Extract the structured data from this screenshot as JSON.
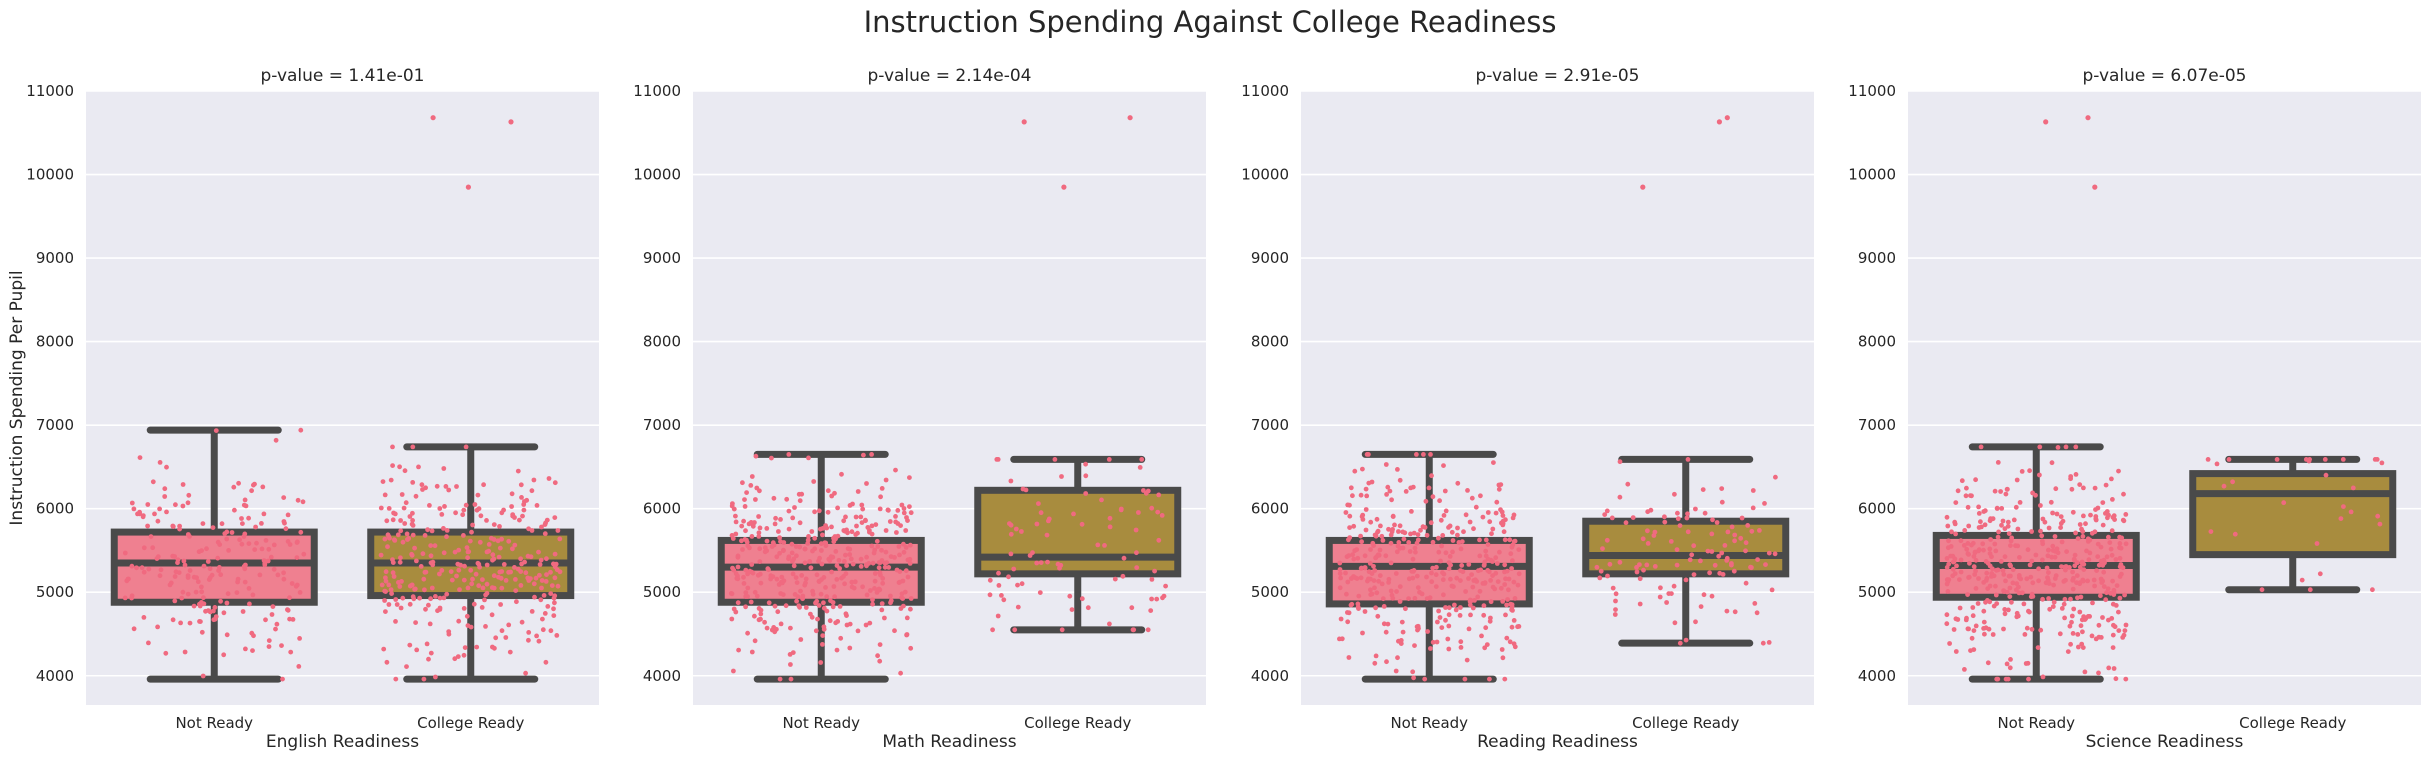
{
  "figure_title": "Instruction Spending Against College Readiness",
  "colors": {
    "not_ready": "#ef8090",
    "college_ready": "#a88c3e",
    "box_edge": "#4a4a4a",
    "points": "#f06a80",
    "panel_bg": "#eaeaf2",
    "grid": "#ffffff"
  },
  "chart_data": [
    {
      "type": "box",
      "title": "p-value = 1.41e-01",
      "xlabel": "English Readiness",
      "ylabel": "Instruction Spending Per Pupil",
      "ylim": [
        3650,
        11000
      ],
      "yticks": [
        4000,
        5000,
        6000,
        7000,
        8000,
        9000,
        10000,
        11000
      ],
      "grid": true,
      "categories": [
        "Not Ready",
        "College Ready"
      ],
      "boxes": [
        {
          "q1": 4880,
          "median": 5350,
          "q3": 5720,
          "whisker_low": 3960,
          "whisker_high": 6940,
          "n_points": 220,
          "outliers": []
        },
        {
          "q1": 4960,
          "median": 5350,
          "q3": 5720,
          "whisker_low": 3960,
          "whisker_high": 6740,
          "n_points": 330,
          "outliers": [
            9850,
            10630,
            10680
          ]
        }
      ]
    },
    {
      "type": "box",
      "title": "p-value = 2.14e-04",
      "xlabel": "Math Readiness",
      "ylabel": "",
      "ylim": [
        3650,
        11000
      ],
      "yticks": [
        4000,
        5000,
        6000,
        7000,
        8000,
        9000,
        10000,
        11000
      ],
      "grid": true,
      "categories": [
        "Not Ready",
        "College Ready"
      ],
      "boxes": [
        {
          "q1": 4880,
          "median": 5300,
          "q3": 5620,
          "whisker_low": 3960,
          "whisker_high": 6650,
          "n_points": 420,
          "outliers": []
        },
        {
          "q1": 5220,
          "median": 5420,
          "q3": 6220,
          "whisker_low": 4550,
          "whisker_high": 6590,
          "n_points": 90,
          "outliers": [
            9850,
            10630,
            10680
          ]
        }
      ]
    },
    {
      "type": "box",
      "title": "p-value = 2.91e-05",
      "xlabel": "Reading Readiness",
      "ylabel": "",
      "ylim": [
        3650,
        11000
      ],
      "yticks": [
        4000,
        5000,
        6000,
        7000,
        8000,
        9000,
        10000,
        11000
      ],
      "grid": true,
      "categories": [
        "Not Ready",
        "College Ready"
      ],
      "boxes": [
        {
          "q1": 4860,
          "median": 5310,
          "q3": 5620,
          "whisker_low": 3960,
          "whisker_high": 6650,
          "n_points": 400,
          "outliers": []
        },
        {
          "q1": 5220,
          "median": 5440,
          "q3": 5850,
          "whisker_low": 4390,
          "whisker_high": 6590,
          "n_points": 120,
          "outliers": [
            9850,
            10630,
            10680
          ]
        }
      ]
    },
    {
      "type": "box",
      "title": "p-value = 6.07e-05",
      "xlabel": "Science Readiness",
      "ylabel": "",
      "ylim": [
        3650,
        11000
      ],
      "yticks": [
        4000,
        5000,
        6000,
        7000,
        8000,
        9000,
        10000,
        11000
      ],
      "grid": true,
      "categories": [
        "Not Ready",
        "College Ready"
      ],
      "boxes": [
        {
          "q1": 4940,
          "median": 5320,
          "q3": 5680,
          "whisker_low": 3960,
          "whisker_high": 6740,
          "n_points": 460,
          "outliers": [
            9850,
            10630,
            10680
          ]
        },
        {
          "q1": 5450,
          "median": 6180,
          "q3": 6420,
          "whisker_low": 5030,
          "whisker_high": 6590,
          "n_points": 30,
          "outliers": []
        }
      ]
    }
  ]
}
